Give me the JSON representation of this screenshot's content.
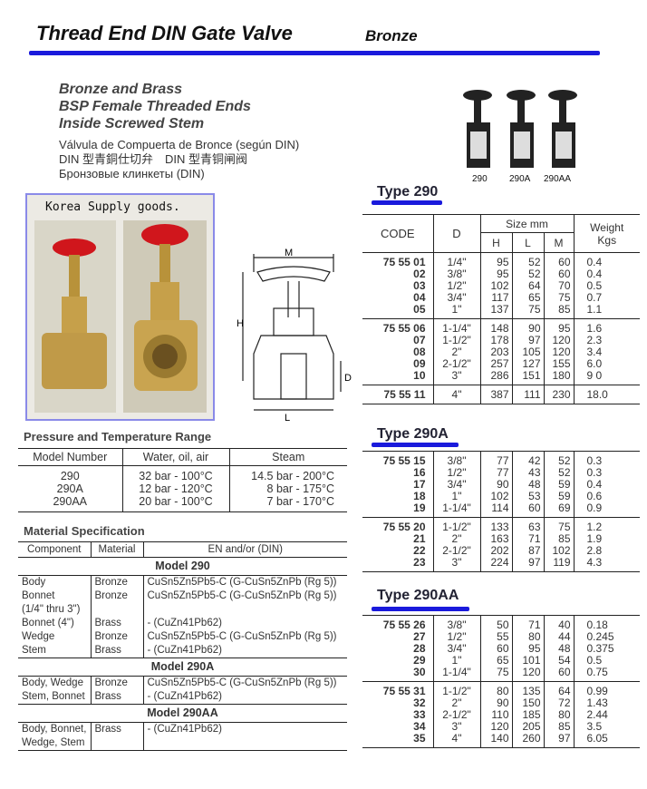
{
  "header": {
    "title": "Thread End DIN Gate Valve",
    "subtitle": "Bronze",
    "accent": "#1a1adc"
  },
  "description": {
    "lines": [
      "Bronze and Brass",
      "BSP Female Threaded Ends",
      "Inside Screwed Stem"
    ],
    "multilingual": [
      "Válvula de Compuerta de Bronce (según DIN)",
      "DIN 型青銅仕切弁　DIN 型青铜闸阀",
      "Бронзовые клинкеты (DIN)"
    ]
  },
  "photo": {
    "caption": "Korea Supply goods."
  },
  "product_image": {
    "labels": [
      "290",
      "290A",
      "290AA"
    ]
  },
  "diagram": {
    "labels": {
      "m": "M",
      "h": "H",
      "d": "D",
      "l": "L"
    }
  },
  "size_headers": {
    "code": "CODE",
    "d": "D",
    "size": "Size mm",
    "h": "H",
    "l": "L",
    "m": "M",
    "weight": "Weight",
    "kgs": "Kgs"
  },
  "types": [
    {
      "name": "Type 290",
      "groups": [
        [
          [
            "75 55 01",
            "1/4\"",
            "95",
            "52",
            "60",
            "0.4"
          ],
          [
            "02",
            "3/8\"",
            "95",
            "52",
            "60",
            "0.4"
          ],
          [
            "03",
            "1/2\"",
            "102",
            "64",
            "70",
            "0.5"
          ],
          [
            "04",
            "3/4\"",
            "117",
            "65",
            "75",
            "0.7"
          ],
          [
            "05",
            "1\"",
            "137",
            "75",
            "85",
            "1.1"
          ]
        ],
        [
          [
            "75 55 06",
            "1-1/4\"",
            "148",
            "90",
            "95",
            "1.6"
          ],
          [
            "07",
            "1-1/2\"",
            "178",
            "97",
            "120",
            "2.3"
          ],
          [
            "08",
            "2\"",
            "203",
            "105",
            "120",
            "3.4"
          ],
          [
            "09",
            "2-1/2\"",
            "257",
            "127",
            "155",
            "6.0"
          ],
          [
            "10",
            "3\"",
            "286",
            "151",
            "180",
            "9 0"
          ]
        ],
        [
          [
            "75 55 11",
            "4\"",
            "387",
            "111",
            "230",
            "18.0"
          ]
        ]
      ]
    },
    {
      "name": "Type 290A",
      "groups": [
        [
          [
            "75 55 15",
            "3/8\"",
            "77",
            "42",
            "52",
            "0.3"
          ],
          [
            "16",
            "1/2\"",
            "77",
            "43",
            "52",
            "0.3"
          ],
          [
            "17",
            "3/4\"",
            "90",
            "48",
            "59",
            "0.4"
          ],
          [
            "18",
            "1\"",
            "102",
            "53",
            "59",
            "0.6"
          ],
          [
            "19",
            "1-1/4\"",
            "114",
            "60",
            "69",
            "0.9"
          ]
        ],
        [
          [
            "75 55 20",
            "1-1/2\"",
            "133",
            "63",
            "75",
            "1.2"
          ],
          [
            "21",
            "2\"",
            "163",
            "71",
            "85",
            "1.9"
          ],
          [
            "22",
            "2-1/2\"",
            "202",
            "87",
            "102",
            "2.8"
          ],
          [
            "23",
            "3\"",
            "224",
            "97",
            "119",
            "4.3"
          ]
        ]
      ]
    },
    {
      "name": "Type 290AA",
      "groups": [
        [
          [
            "75 55 26",
            "3/8\"",
            "50",
            "71",
            "40",
            "0.18"
          ],
          [
            "27",
            "1/2\"",
            "55",
            "80",
            "44",
            "0.245"
          ],
          [
            "28",
            "3/4\"",
            "60",
            "95",
            "48",
            "0.375"
          ],
          [
            "29",
            "1\"",
            "65",
            "101",
            "54",
            "0.5"
          ],
          [
            "30",
            "1-1/4\"",
            "75",
            "120",
            "60",
            "0.75"
          ]
        ],
        [
          [
            "75 55 31",
            "1-1/2\"",
            "80",
            "135",
            "64",
            "0.99"
          ],
          [
            "32",
            "2\"",
            "90",
            "150",
            "72",
            "1.43"
          ],
          [
            "33",
            "2-1/2\"",
            "110",
            "185",
            "80",
            "2.44"
          ],
          [
            "34",
            "3\"",
            "120",
            "205",
            "85",
            "3.5"
          ],
          [
            "35",
            "4\"",
            "140",
            "260",
            "97",
            "6.05"
          ]
        ]
      ]
    }
  ],
  "pressure": {
    "title": "Pressure and Temperature Range",
    "headers": [
      "Model Number",
      "Water, oil, air",
      "Steam"
    ],
    "rows": [
      [
        "290",
        "32 bar - 100°C",
        "14.5 bar - 200°C"
      ],
      [
        "290A",
        "12 bar - 120°C",
        "8 bar - 175°C"
      ],
      [
        "290AA",
        "20 bar - 100°C",
        "7 bar - 170°C"
      ]
    ]
  },
  "material": {
    "title": "Material Specification",
    "headers": [
      "Component",
      "Material",
      "EN and/or (DIN)"
    ],
    "models": [
      {
        "name": "Model 290",
        "rows": [
          [
            "Body",
            "Bronze",
            "CuSn5Zn5Pb5-C (G-CuSn5ZnPb (Rg 5))"
          ],
          [
            "Bonnet",
            "Bronze",
            "CuSn5Zn5Pb5-C (G-CuSn5ZnPb (Rg 5))"
          ],
          [
            "(1/4\" thru 3\")",
            "",
            ""
          ],
          [
            "Bonnet (4\")",
            "Brass",
            "- (CuZn41Pb62)"
          ],
          [
            "Wedge",
            "Bronze",
            "CuSn5Zn5Pb5-C (G-CuSn5ZnPb (Rg 5))"
          ],
          [
            "Stem",
            "Brass",
            "- (CuZn41Pb62)"
          ]
        ]
      },
      {
        "name": "Model 290A",
        "rows": [
          [
            "Body, Wedge",
            "Bronze",
            "CuSn5Zn5Pb5-C (G-CuSn5ZnPb (Rg 5))"
          ],
          [
            "Stem, Bonnet",
            "Brass",
            "- (CuZn41Pb62)"
          ]
        ]
      },
      {
        "name": "Model 290AA",
        "rows": [
          [
            "Body, Bonnet,",
            "Brass",
            "- (CuZn41Pb62)"
          ],
          [
            "Wedge, Stem",
            "",
            ""
          ]
        ]
      }
    ]
  }
}
